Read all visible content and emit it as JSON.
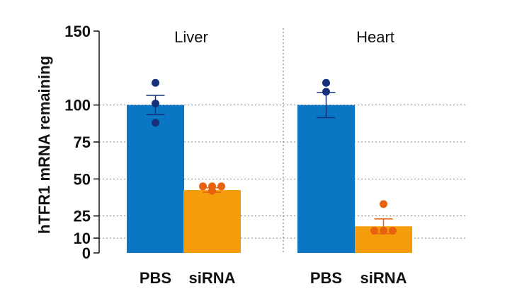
{
  "chart_data": {
    "type": "bar",
    "ylabel": "hTFR1  mRNA remaining",
    "ylim": [
      0,
      150
    ],
    "yticks": [
      0,
      10,
      25,
      50,
      75,
      100,
      150
    ],
    "gridlines": [
      10,
      25,
      50,
      75,
      100
    ],
    "panels": [
      {
        "title": "Liver",
        "bars": [
          {
            "category": "PBS",
            "value": 100,
            "error": 6.5,
            "color": "#0a76c4",
            "point_color": "#16307a",
            "points": [
              115,
              101,
              88
            ]
          },
          {
            "category": "siRNA",
            "value": 42.5,
            "error": 1.5,
            "color": "#f59c0c",
            "point_color": "#e8610f",
            "points": [
              45,
              45,
              45,
              42
            ]
          }
        ]
      },
      {
        "title": "Heart",
        "bars": [
          {
            "category": "PBS",
            "value": 100,
            "error": 8.5,
            "color": "#0a76c4",
            "point_color": "#16307a",
            "points": [
              115,
              109
            ]
          },
          {
            "category": "siRNA",
            "value": 18,
            "error": 5,
            "color": "#f59c0c",
            "point_color": "#e8610f",
            "points": [
              33,
              15,
              15,
              15
            ]
          }
        ]
      }
    ]
  }
}
